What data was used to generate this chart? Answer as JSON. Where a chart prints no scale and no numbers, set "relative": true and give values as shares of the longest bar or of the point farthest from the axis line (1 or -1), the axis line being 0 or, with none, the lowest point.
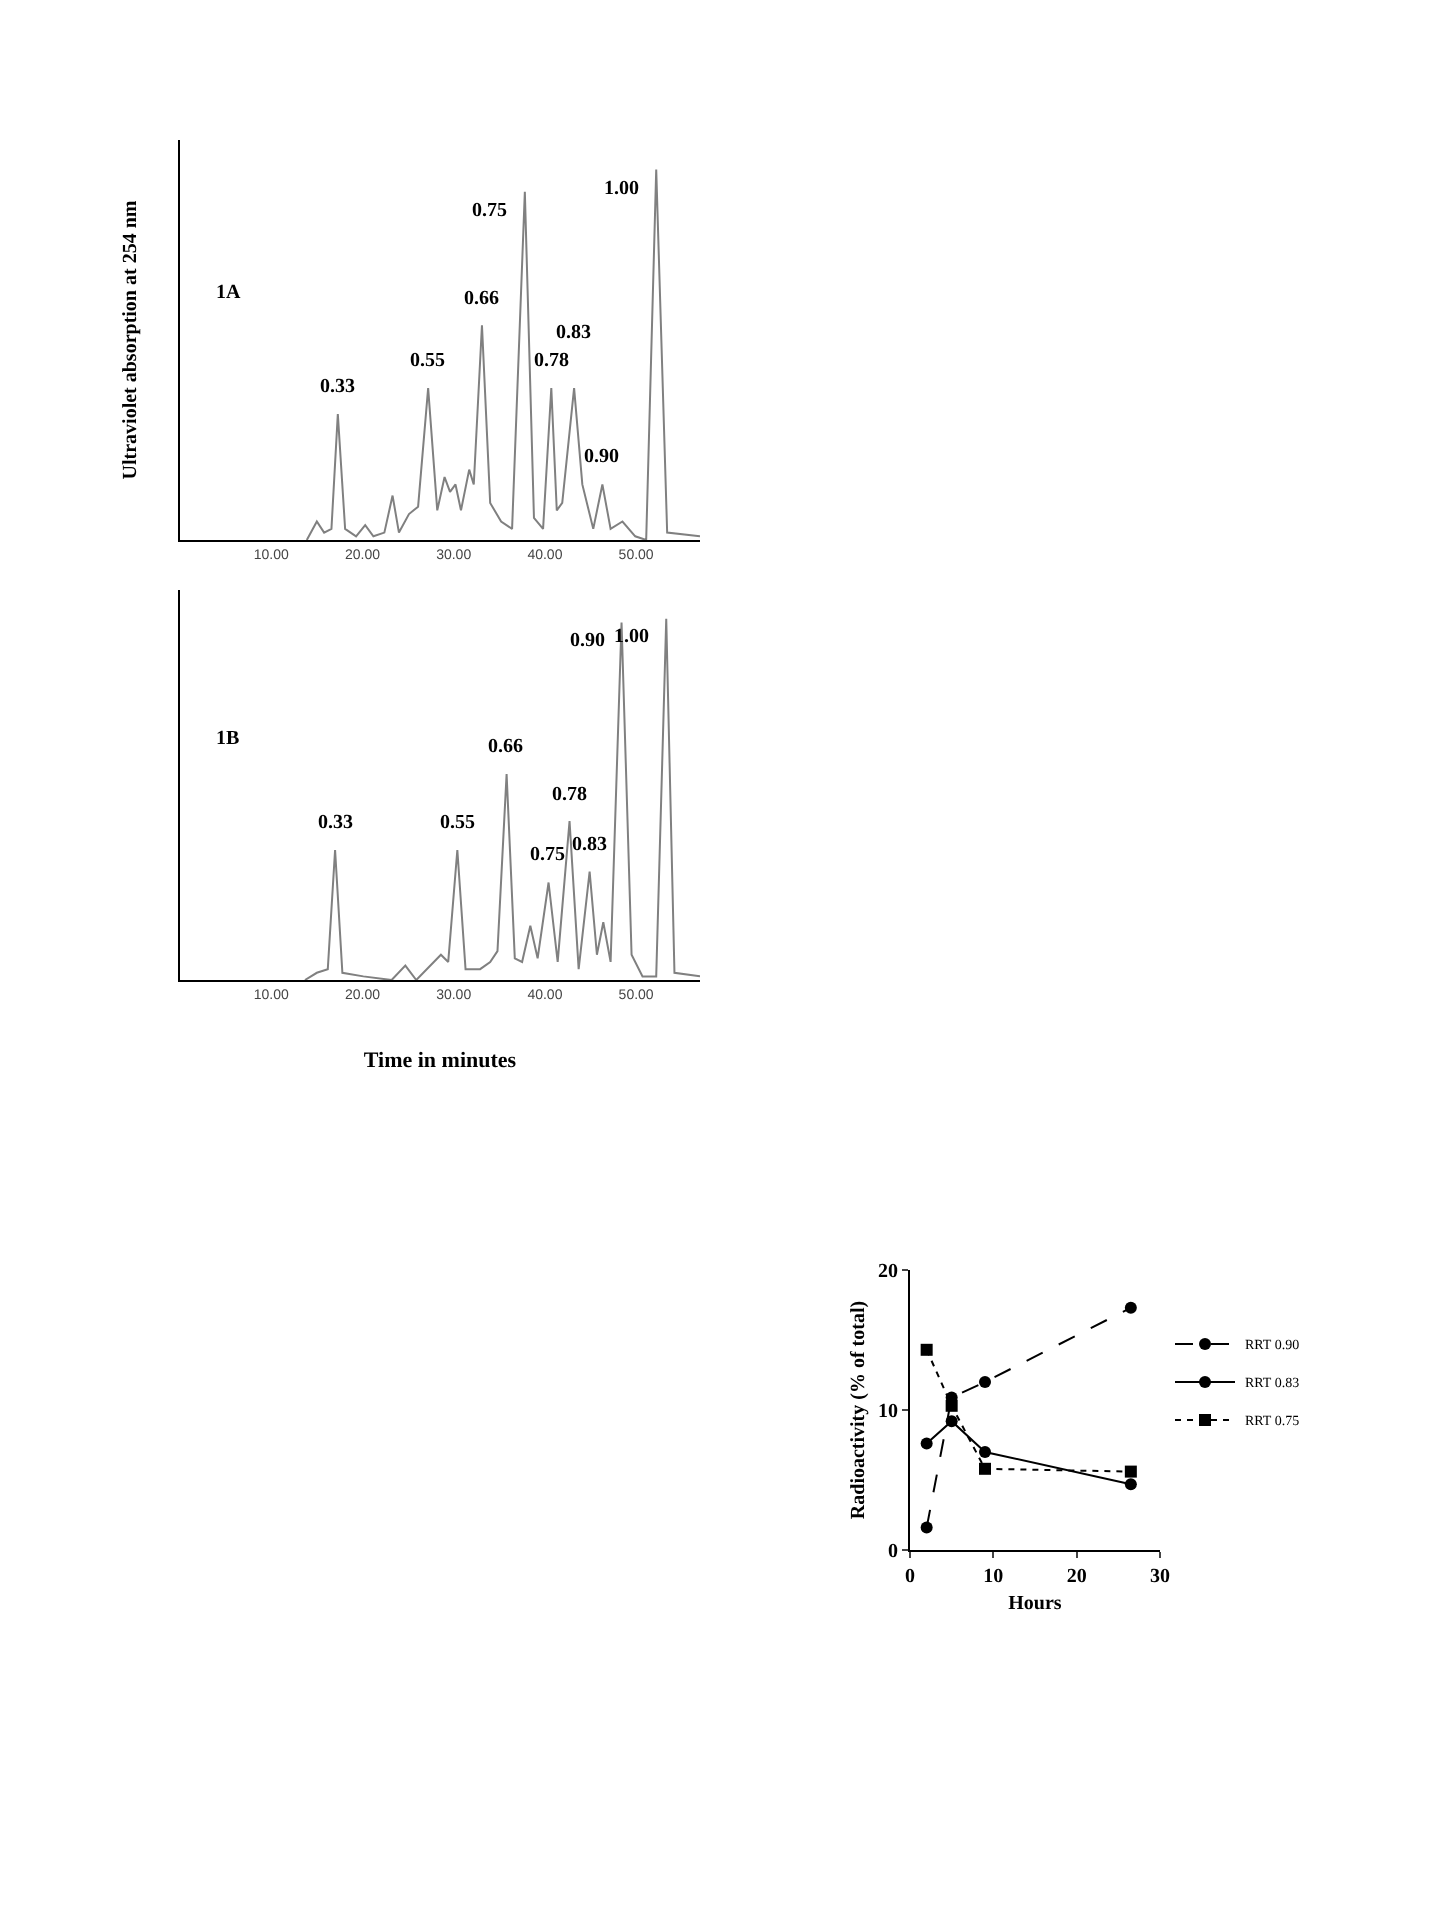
{
  "chart_data": [
    {
      "type": "line",
      "relative": true,
      "ylabel": "Ultraviolet absorption at 254 nm",
      "annotations": [
        "1A",
        {
          "text": "0.33",
          "x": 17.3,
          "y": 0.34
        },
        {
          "text": "0.55",
          "x": 27.2,
          "y": 0.41
        },
        {
          "text": "0.66",
          "x": 33.1,
          "y": 0.58
        },
        {
          "text": "0.75",
          "x": 37.8,
          "y": 0.94
        },
        {
          "text": "0.78",
          "x": 40.7,
          "y": 0.41
        },
        {
          "text": "0.83",
          "x": 43.2,
          "y": 0.41
        },
        {
          "text": "0.90",
          "x": 46.3,
          "y": 0.15
        },
        {
          "text": "1.00",
          "x": 52.2,
          "y": 1.0
        }
      ],
      "xlim": [
        0,
        57
      ],
      "xticks": [
        {
          "value": 10,
          "label": "10.00"
        },
        {
          "value": 20,
          "label": "20.00"
        },
        {
          "value": 30,
          "label": "30.00"
        },
        {
          "value": 40,
          "label": "40.00"
        },
        {
          "value": 50,
          "label": "50.00"
        }
      ],
      "x": [
        13.9,
        15.0,
        15.8,
        16.6,
        17.3,
        18.1,
        19.3,
        20.3,
        21.2,
        22.4,
        23.3,
        24.0,
        25.1,
        26.1,
        27.2,
        28.2,
        29.0,
        29.6,
        30.2,
        30.8,
        31.7,
        32.2,
        33.1,
        34.0,
        35.2,
        36.4,
        37.8,
        38.8,
        39.8,
        40.7,
        41.3,
        41.9,
        43.2,
        44.1,
        45.3,
        46.3,
        47.2,
        48.5,
        49.9,
        51.1,
        52.2,
        53.4,
        57.0
      ],
      "series": [
        {
          "color": "#808080",
          "values": [
            0.0,
            0.05,
            0.02,
            0.03,
            0.34,
            0.03,
            0.01,
            0.04,
            0.01,
            0.02,
            0.12,
            0.02,
            0.07,
            0.09,
            0.41,
            0.08,
            0.17,
            0.13,
            0.15,
            0.08,
            0.19,
            0.15,
            0.58,
            0.1,
            0.05,
            0.03,
            0.94,
            0.06,
            0.03,
            0.41,
            0.08,
            0.1,
            0.41,
            0.15,
            0.03,
            0.15,
            0.03,
            0.05,
            0.01,
            0.0,
            1.0,
            0.02,
            0.01
          ]
        }
      ],
      "grid": false,
      "legend": false
    },
    {
      "type": "line",
      "relative": true,
      "xlabel": "Time in minutes",
      "annotations": [
        "1B",
        {
          "text": "0.33",
          "x": 17.0,
          "y": 0.36
        },
        {
          "text": "0.55",
          "x": 30.4,
          "y": 0.36
        },
        {
          "text": "0.66",
          "x": 35.8,
          "y": 0.57
        },
        {
          "text": "0.75",
          "x": 40.4,
          "y": 0.27
        },
        {
          "text": "0.78",
          "x": 42.7,
          "y": 0.44
        },
        {
          "text": "0.83",
          "x": 44.9,
          "y": 0.3
        },
        {
          "text": "0.90",
          "x": 48.4,
          "y": 0.99
        },
        {
          "text": "1.00",
          "x": 53.3,
          "y": 1.0
        }
      ],
      "xlim": [
        0,
        57
      ],
      "xticks": [
        {
          "value": 10,
          "label": "10.00"
        },
        {
          "value": 20,
          "label": "20.00"
        },
        {
          "value": 30,
          "label": "30.00"
        },
        {
          "value": 40,
          "label": "40.00"
        },
        {
          "value": 50,
          "label": "50.00"
        }
      ],
      "x": [
        13.7,
        15.0,
        16.2,
        17.0,
        17.8,
        20.1,
        23.2,
        24.7,
        25.9,
        28.6,
        29.4,
        30.4,
        31.3,
        32.9,
        34.0,
        34.8,
        35.8,
        36.7,
        37.5,
        38.4,
        39.2,
        40.4,
        41.4,
        42.7,
        43.7,
        44.9,
        45.7,
        46.4,
        47.2,
        48.4,
        49.5,
        50.7,
        52.2,
        53.3,
        54.2,
        57.0
      ],
      "series": [
        {
          "color": "#808080",
          "values": [
            0.0,
            0.02,
            0.03,
            0.36,
            0.02,
            0.01,
            0.0,
            0.04,
            0.0,
            0.07,
            0.05,
            0.36,
            0.03,
            0.03,
            0.05,
            0.08,
            0.57,
            0.06,
            0.05,
            0.15,
            0.06,
            0.27,
            0.05,
            0.44,
            0.03,
            0.3,
            0.07,
            0.16,
            0.05,
            0.99,
            0.07,
            0.01,
            0.01,
            1.0,
            0.02,
            0.01
          ]
        }
      ],
      "grid": false,
      "legend": false
    },
    {
      "type": "line",
      "xlabel": "Hours",
      "ylabel": "Radioactivity (% of total)",
      "xlim": [
        0,
        30
      ],
      "xticks": [
        0,
        10,
        20,
        30
      ],
      "ylim": [
        0,
        20
      ],
      "yticks": [
        0,
        10,
        20
      ],
      "x": [
        2,
        5,
        9,
        26.5
      ],
      "series": [
        {
          "name": "RRT 0.90",
          "color": "#000000",
          "marker": "circle",
          "line_style": "dashed",
          "values": [
            1.6,
            10.9,
            12.0,
            17.3
          ]
        },
        {
          "name": "RRT 0.83",
          "color": "#000000",
          "marker": "circle",
          "line_style": "solid",
          "values": [
            7.6,
            9.2,
            7.0,
            4.7
          ]
        },
        {
          "name": "RRT 0.75",
          "color": "#000000",
          "marker": "square",
          "line_style": "dotted",
          "values": [
            14.3,
            10.3,
            5.8,
            5.6
          ]
        }
      ],
      "grid": false,
      "legend": "right"
    }
  ]
}
